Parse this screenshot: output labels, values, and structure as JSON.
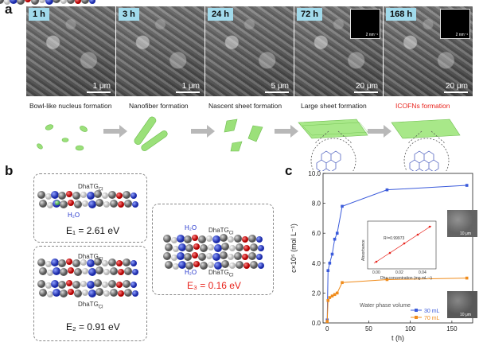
{
  "panels": {
    "a": "a",
    "b": "b",
    "c": "c"
  },
  "sem_images": [
    {
      "time": "1 h",
      "scale": "1 μm"
    },
    {
      "time": "3 h",
      "scale": "1 μm"
    },
    {
      "time": "24 h",
      "scale": "5 μm"
    },
    {
      "time": "72 h",
      "scale": "20 μm",
      "saed": "2 nm⁻¹"
    },
    {
      "time": "168 h",
      "scale": "20 μm",
      "saed": "2 nm⁻¹"
    }
  ],
  "stages": [
    "Bowl-like nucleus formation",
    "Nanofiber formation",
    "Nascent sheet formation",
    "Large sheet formation",
    "ICOFNs formation"
  ],
  "colors": {
    "highlight": "#e8231c",
    "sheet": "#9be07a",
    "blue_series": "#3b5bdb",
    "orange_series": "#f08c1c",
    "arrow": "#b8b8b8"
  },
  "panel_b": {
    "box1": {
      "label": "DhaTG",
      "sub": "Cl",
      "water": "H₂O",
      "energy": "E₁ = 2.61 eV"
    },
    "box2": {
      "label1": "DhaTG",
      "sub1": "Cl",
      "label2": "DhaTG",
      "sub2": "Cl",
      "energy": "E₂ = 0.91 eV"
    },
    "box3": {
      "label1": "DhaTG",
      "sub1": "Cl",
      "label2": "DhaTG",
      "sub2": "Cl",
      "water1": "H₂O",
      "water2": "H₂O",
      "energy": "E₃ = 0.16 eV"
    }
  },
  "chart_data": {
    "type": "line",
    "xlabel": "t (h)",
    "ylabel": "c×10⁵ (mol L⁻¹)",
    "xlim": [
      -5,
      175
    ],
    "ylim": [
      0,
      10
    ],
    "xticks": [
      0,
      50,
      100,
      150
    ],
    "yticks": [
      0.0,
      2.0,
      4.0,
      6.0,
      8.0,
      10.0
    ],
    "legend_title": "Water phase volume",
    "series": [
      {
        "name": "30 mL",
        "color": "#3b5bdb",
        "x": [
          0,
          1,
          3,
          6,
          9,
          12,
          18,
          72,
          168
        ],
        "y": [
          0.2,
          3.5,
          4.0,
          4.6,
          5.6,
          6.0,
          7.8,
          8.9,
          9.2
        ]
      },
      {
        "name": "70 mL",
        "color": "#f08c1c",
        "x": [
          0,
          1,
          3,
          6,
          9,
          12,
          18,
          72,
          168
        ],
        "y": [
          0.1,
          1.5,
          1.7,
          1.8,
          1.9,
          2.0,
          2.7,
          2.9,
          3.0
        ]
      }
    ],
    "inset": {
      "xlabel": "Dha concentration (mg mL⁻¹)",
      "ylabel": "Absorbance",
      "xticks": [
        "0.00",
        "0.02",
        "0.04"
      ],
      "r2": "R²=0.99973"
    },
    "inset_images": [
      {
        "scale": "10 μm"
      },
      {
        "scale": "10 μm"
      }
    ]
  }
}
